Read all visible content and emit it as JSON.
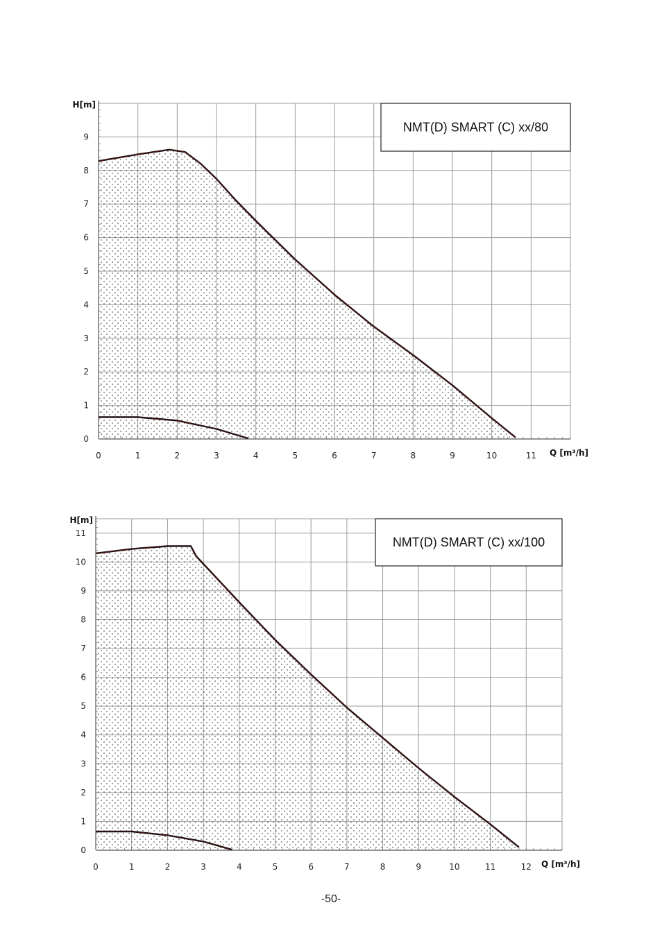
{
  "page_number": "-50-",
  "chart_data": [
    {
      "type": "line",
      "model_label": "NMT(D) SMART (C) xx/80",
      "xlabel": "Q [m³/h]",
      "ylabel": "H[m]",
      "xlim": [
        0,
        12
      ],
      "ylim": [
        0,
        10
      ],
      "x_ticks": [
        0,
        1,
        2,
        3,
        4,
        5,
        6,
        7,
        8,
        9,
        10,
        11
      ],
      "y_ticks": [
        0,
        1,
        2,
        3,
        4,
        5,
        6,
        7,
        8,
        9
      ],
      "grid": true,
      "fill": "dotted area under max curve",
      "series": [
        {
          "points": [
            [
              0,
              8.28
            ],
            [
              1,
              8.48
            ],
            [
              1.8,
              8.62
            ],
            [
              2.2,
              8.55
            ],
            [
              2.6,
              8.2
            ],
            [
              3,
              7.75
            ],
            [
              3.5,
              7.1
            ],
            [
              4,
              6.5
            ],
            [
              5,
              5.35
            ],
            [
              6,
              4.3
            ],
            [
              7,
              3.35
            ],
            [
              8,
              2.5
            ],
            [
              9,
              1.6
            ],
            [
              10,
              0.62
            ],
            [
              10.6,
              0.05
            ]
          ]
        },
        {
          "points": [
            [
              0,
              0.65
            ],
            [
              1,
              0.65
            ],
            [
              2,
              0.55
            ],
            [
              3,
              0.3
            ],
            [
              3.8,
              0.02
            ]
          ]
        }
      ]
    },
    {
      "type": "line",
      "model_label": "NMT(D) SMART (C) xx/100",
      "xlabel": "Q [m³/h]",
      "ylabel": "H[m]",
      "xlim": [
        0,
        13
      ],
      "ylim": [
        0,
        11.5
      ],
      "x_ticks": [
        0,
        1,
        2,
        3,
        4,
        5,
        6,
        7,
        8,
        9,
        10,
        11,
        12
      ],
      "y_ticks": [
        0,
        1,
        2,
        3,
        4,
        5,
        6,
        7,
        8,
        9,
        10,
        11
      ],
      "grid": true,
      "fill": "dotted area under max curve",
      "series": [
        {
          "points": [
            [
              0,
              10.3
            ],
            [
              1,
              10.45
            ],
            [
              2,
              10.55
            ],
            [
              2.65,
              10.55
            ],
            [
              2.8,
              10.2
            ],
            [
              4,
              8.6
            ],
            [
              5,
              7.3
            ],
            [
              6,
              6.1
            ],
            [
              7,
              4.95
            ],
            [
              8,
              3.9
            ],
            [
              9,
              2.85
            ],
            [
              10,
              1.85
            ],
            [
              11,
              0.9
            ],
            [
              11.8,
              0.1
            ]
          ]
        },
        {
          "points": [
            [
              0,
              0.65
            ],
            [
              1,
              0.65
            ],
            [
              2,
              0.52
            ],
            [
              3,
              0.3
            ],
            [
              3.8,
              0.02
            ]
          ]
        }
      ]
    }
  ]
}
